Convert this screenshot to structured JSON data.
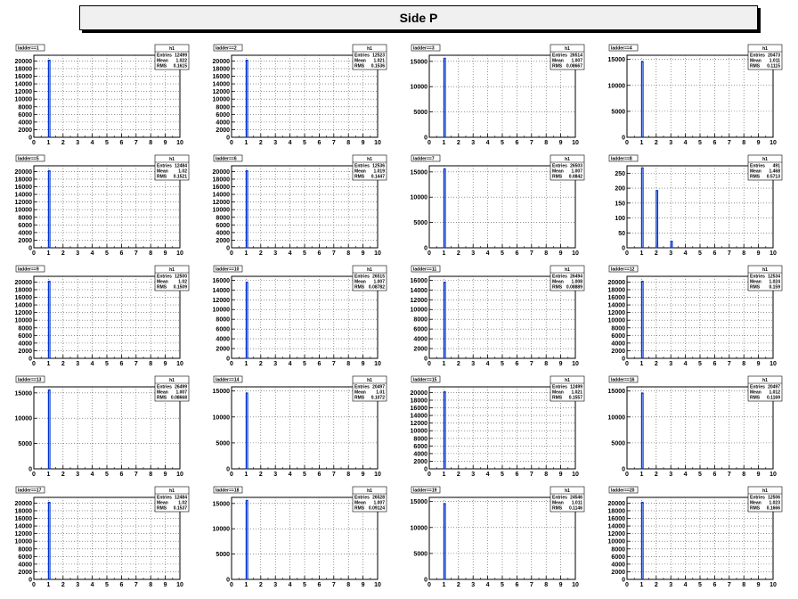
{
  "canvas_title": "Side P",
  "colors": {
    "bar": "#0033cc",
    "grid": "#555555",
    "frame": "#000000"
  },
  "stat_labels": [
    "Entries",
    "Mean",
    "RMS"
  ],
  "chart_data": [
    {
      "type": "bar",
      "hist_name": "h1",
      "title": "ladder==1",
      "entries": "12499",
      "mean": "1.022",
      "rms": "0.1615",
      "xlim": [
        0,
        10
      ],
      "yticks": [
        0,
        2000,
        4000,
        6000,
        8000,
        10000,
        12000,
        14000,
        16000,
        18000,
        20000
      ],
      "ymax": 21500,
      "bins": [
        {
          "x": 1,
          "y": 20200
        }
      ]
    },
    {
      "type": "bar",
      "hist_name": "h1",
      "title": "ladder==2",
      "entries": "12523",
      "mean": "1.021",
      "rms": "0.1536",
      "xlim": [
        0,
        10
      ],
      "yticks": [
        0,
        2000,
        4000,
        6000,
        8000,
        10000,
        12000,
        14000,
        16000,
        18000,
        20000
      ],
      "ymax": 21500,
      "bins": [
        {
          "x": 1,
          "y": 20200
        }
      ]
    },
    {
      "type": "bar",
      "hist_name": "h1",
      "title": "ladder==3",
      "entries": "26514",
      "mean": "1.007",
      "rms": "0.08667",
      "xlim": [
        0,
        10
      ],
      "yticks": [
        0,
        5000,
        10000,
        15000
      ],
      "ymax": 16200,
      "bins": [
        {
          "x": 1,
          "y": 15600
        }
      ]
    },
    {
      "type": "bar",
      "hist_name": "h1",
      "title": "ladder==4",
      "entries": "20473",
      "mean": "1.011",
      "rms": "0.1115",
      "xlim": [
        0,
        10
      ],
      "yticks": [
        0,
        5000,
        10000,
        15000
      ],
      "ymax": 15800,
      "bins": [
        {
          "x": 1,
          "y": 14600
        }
      ]
    },
    {
      "type": "bar",
      "hist_name": "h1",
      "title": "ladder==5",
      "entries": "12484",
      "mean": "1.02",
      "rms": "0.1521",
      "xlim": [
        0,
        10
      ],
      "yticks": [
        0,
        2000,
        4000,
        6000,
        8000,
        10000,
        12000,
        14000,
        16000,
        18000,
        20000
      ],
      "ymax": 21500,
      "bins": [
        {
          "x": 1,
          "y": 20200
        }
      ]
    },
    {
      "type": "bar",
      "hist_name": "h1",
      "title": "ladder==6",
      "entries": "12536",
      "mean": "1.019",
      "rms": "0.1447",
      "xlim": [
        0,
        10
      ],
      "yticks": [
        0,
        2000,
        4000,
        6000,
        8000,
        10000,
        12000,
        14000,
        16000,
        18000,
        20000
      ],
      "ymax": 21500,
      "bins": [
        {
          "x": 1,
          "y": 20200
        }
      ]
    },
    {
      "type": "bar",
      "hist_name": "h1",
      "title": "ladder==7",
      "entries": "26503",
      "mean": "1.007",
      "rms": "0.0842",
      "xlim": [
        0,
        10
      ],
      "yticks": [
        0,
        5000,
        10000,
        15000
      ],
      "ymax": 16200,
      "bins": [
        {
          "x": 1,
          "y": 15600
        }
      ]
    },
    {
      "type": "bar",
      "hist_name": "h1",
      "title": "ladder==8",
      "entries": "491",
      "mean": "1.468",
      "rms": "0.5713",
      "xlim": [
        0,
        10
      ],
      "yticks": [
        0,
        50,
        100,
        150,
        200,
        250
      ],
      "ymax": 275,
      "bins": [
        {
          "x": 1,
          "y": 268
        },
        {
          "x": 2,
          "y": 192
        },
        {
          "x": 3,
          "y": 22
        }
      ]
    },
    {
      "type": "bar",
      "hist_name": "h1",
      "title": "ladder==9",
      "entries": "12500",
      "mean": "1.02",
      "rms": "0.1509",
      "xlim": [
        0,
        10
      ],
      "yticks": [
        0,
        2000,
        4000,
        6000,
        8000,
        10000,
        12000,
        14000,
        16000,
        18000,
        20000
      ],
      "ymax": 21500,
      "bins": [
        {
          "x": 1,
          "y": 20200
        }
      ]
    },
    {
      "type": "bar",
      "hist_name": "h1",
      "title": "ladder==10",
      "entries": "26515",
      "mean": "1.007",
      "rms": "0.08782",
      "xlim": [
        0,
        10
      ],
      "yticks": [
        0,
        2000,
        4000,
        6000,
        8000,
        10000,
        12000,
        14000,
        16000
      ],
      "ymax": 16800,
      "bins": [
        {
          "x": 1,
          "y": 15600
        }
      ]
    },
    {
      "type": "bar",
      "hist_name": "h1",
      "title": "ladder==11",
      "entries": "26494",
      "mean": "1.008",
      "rms": "0.08889",
      "xlim": [
        0,
        10
      ],
      "yticks": [
        0,
        2000,
        4000,
        6000,
        8000,
        10000,
        12000,
        14000,
        16000
      ],
      "ymax": 16800,
      "bins": [
        {
          "x": 1,
          "y": 15600
        }
      ]
    },
    {
      "type": "bar",
      "hist_name": "h1",
      "title": "ladder==12",
      "entries": "12534",
      "mean": "1.024",
      "rms": "0.159",
      "xlim": [
        0,
        10
      ],
      "yticks": [
        0,
        2000,
        4000,
        6000,
        8000,
        10000,
        12000,
        14000,
        16000,
        18000,
        20000
      ],
      "ymax": 21500,
      "bins": [
        {
          "x": 1,
          "y": 20200
        }
      ]
    },
    {
      "type": "bar",
      "hist_name": "h1",
      "title": "ladder==13",
      "entries": "26499",
      "mean": "1.007",
      "rms": "0.08668",
      "xlim": [
        0,
        10
      ],
      "yticks": [
        0,
        5000,
        10000,
        15000
      ],
      "ymax": 16200,
      "bins": [
        {
          "x": 1,
          "y": 15600
        }
      ]
    },
    {
      "type": "bar",
      "hist_name": "h1",
      "title": "ladder==14",
      "entries": "20497",
      "mean": "1.01",
      "rms": "0.1072",
      "xlim": [
        0,
        10
      ],
      "yticks": [
        0,
        5000,
        10000,
        15000
      ],
      "ymax": 15800,
      "bins": [
        {
          "x": 1,
          "y": 14600
        }
      ]
    },
    {
      "type": "bar",
      "hist_name": "h1",
      "title": "ladder==15",
      "entries": "12499",
      "mean": "1.021",
      "rms": "0.1557",
      "xlim": [
        0,
        10
      ],
      "yticks": [
        0,
        2000,
        4000,
        6000,
        8000,
        10000,
        12000,
        14000,
        16000,
        18000,
        20000
      ],
      "ymax": 21500,
      "bins": [
        {
          "x": 1,
          "y": 20200
        }
      ]
    },
    {
      "type": "bar",
      "hist_name": "h1",
      "title": "ladder==16",
      "entries": "20497",
      "mean": "1.012",
      "rms": "0.1169",
      "xlim": [
        0,
        10
      ],
      "yticks": [
        0,
        5000,
        10000,
        15000
      ],
      "ymax": 15800,
      "bins": [
        {
          "x": 1,
          "y": 14600
        }
      ]
    },
    {
      "type": "bar",
      "hist_name": "h1",
      "title": "ladder==17",
      "entries": "12484",
      "mean": "1.02",
      "rms": "0.1537",
      "xlim": [
        0,
        10
      ],
      "yticks": [
        0,
        2000,
        4000,
        6000,
        8000,
        10000,
        12000,
        14000,
        16000,
        18000,
        20000
      ],
      "ymax": 21500,
      "bins": [
        {
          "x": 1,
          "y": 20200
        }
      ]
    },
    {
      "type": "bar",
      "hist_name": "h1",
      "title": "ladder==18",
      "entries": "26528",
      "mean": "1.007",
      "rms": "0.09124",
      "xlim": [
        0,
        10
      ],
      "yticks": [
        0,
        5000,
        10000,
        15000
      ],
      "ymax": 16200,
      "bins": [
        {
          "x": 1,
          "y": 15600
        }
      ]
    },
    {
      "type": "bar",
      "hist_name": "h1",
      "title": "ladder==19",
      "entries": "24546",
      "mean": "1.011",
      "rms": "0.1146",
      "xlim": [
        0,
        10
      ],
      "yticks": [
        0,
        5000,
        10000,
        15000
      ],
      "ymax": 15800,
      "bins": [
        {
          "x": 1,
          "y": 14600
        }
      ]
    },
    {
      "type": "bar",
      "hist_name": "h1",
      "title": "ladder==20",
      "entries": "12506",
      "mean": "1.023",
      "rms": "0.1666",
      "xlim": [
        0,
        10
      ],
      "yticks": [
        0,
        2000,
        4000,
        6000,
        8000,
        10000,
        12000,
        14000,
        16000,
        18000,
        20000
      ],
      "ymax": 21500,
      "bins": [
        {
          "x": 1,
          "y": 20200
        }
      ]
    }
  ]
}
